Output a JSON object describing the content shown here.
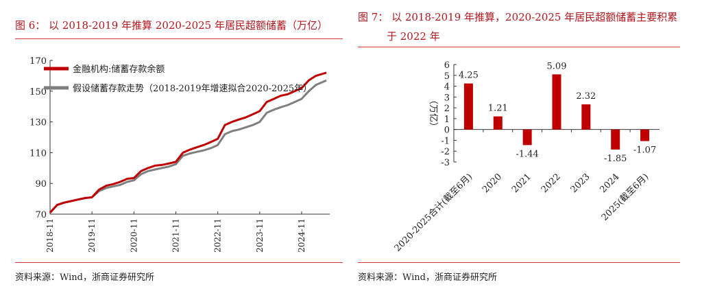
{
  "figure6": {
    "title": "图 6：  以 2018-2019 年推算 2020-2025 年居民超额储蓄（万亿）",
    "source": "资料来源：Wind，浙商证券研究所",
    "chart_data": {
      "type": "line",
      "x_ticks": [
        "2018-11",
        "2019-11",
        "2020-11",
        "2021-11",
        "2022-11",
        "2023-11",
        "2024-11"
      ],
      "ylim": [
        70,
        170
      ],
      "y_ticks": [
        70,
        90,
        110,
        130,
        150,
        170
      ],
      "legend_position": "top-left",
      "series": [
        {
          "name": "金融机构:储蓄存款余额",
          "color": "#c00000",
          "x": [
            2018.83,
            2019.0,
            2019.17,
            2019.33,
            2019.5,
            2019.67,
            2019.83,
            2020.0,
            2020.17,
            2020.33,
            2020.5,
            2020.67,
            2020.83,
            2021.0,
            2021.17,
            2021.33,
            2021.5,
            2021.67,
            2021.83,
            2022.0,
            2022.17,
            2022.33,
            2022.5,
            2022.67,
            2022.83,
            2023.0,
            2023.17,
            2023.33,
            2023.5,
            2023.67,
            2023.83,
            2024.0,
            2024.17,
            2024.33,
            2024.5,
            2024.67,
            2024.83,
            2025.0,
            2025.17,
            2025.42
          ],
          "values": [
            71,
            76,
            77.5,
            78.5,
            79.5,
            80.5,
            81,
            86,
            88.5,
            89.5,
            91,
            93,
            93.5,
            98,
            100,
            101.5,
            102,
            103,
            104,
            110,
            112,
            113.5,
            115,
            117,
            119,
            128,
            130,
            131.5,
            133,
            135,
            137,
            143,
            145,
            147,
            148,
            150,
            152,
            157,
            160,
            162
          ]
        },
        {
          "name": "假设储蓄存款走势（2018-2019年增速拟合2020-2025年）",
          "color": "#7f7f7f",
          "x": [
            2018.83,
            2019.0,
            2019.17,
            2019.33,
            2019.5,
            2019.67,
            2019.83,
            2020.0,
            2020.17,
            2020.33,
            2020.5,
            2020.67,
            2020.83,
            2021.0,
            2021.17,
            2021.33,
            2021.5,
            2021.67,
            2021.83,
            2022.0,
            2022.17,
            2022.33,
            2022.5,
            2022.67,
            2022.83,
            2023.0,
            2023.17,
            2023.33,
            2023.5,
            2023.67,
            2023.83,
            2024.0,
            2024.17,
            2024.33,
            2024.5,
            2024.67,
            2024.83,
            2025.0,
            2025.17,
            2025.42
          ],
          "values": [
            71,
            76,
            77.5,
            78.5,
            79.5,
            80.5,
            81,
            85,
            87,
            88,
            89,
            91,
            92,
            96,
            98,
            99,
            100,
            101,
            102.5,
            108,
            109.5,
            110.5,
            111.5,
            113,
            115,
            122,
            124,
            125,
            126.5,
            128,
            130,
            136,
            138,
            139.5,
            141,
            143,
            145,
            150,
            154,
            157
          ]
        }
      ]
    }
  },
  "figure7": {
    "title_line1": "图 7：  以 2018-2019 年推算，2020-2025 年居民超额储蓄主要积累",
    "title_line2": "于 2022 年",
    "source": "资料来源：Wind，浙商证券研究所",
    "chart_data": {
      "type": "bar",
      "ylabel": "（万亿）",
      "ylim": [
        -3,
        6
      ],
      "y_ticks": [
        -3,
        -2,
        -1,
        0,
        1,
        2,
        3,
        4,
        5,
        6
      ],
      "categories": [
        "2020-2025合计(截至6月)",
        "2020",
        "2021",
        "2022",
        "2023",
        "2024",
        "2025(截至6月)"
      ],
      "values": [
        4.25,
        1.21,
        -1.44,
        5.09,
        2.32,
        -1.85,
        -1.07
      ],
      "labels": [
        "4.25",
        "1.21",
        "-1.44",
        "5.09",
        "2.32",
        "-1.85",
        "-1.07"
      ],
      "color": "#c00000"
    }
  }
}
